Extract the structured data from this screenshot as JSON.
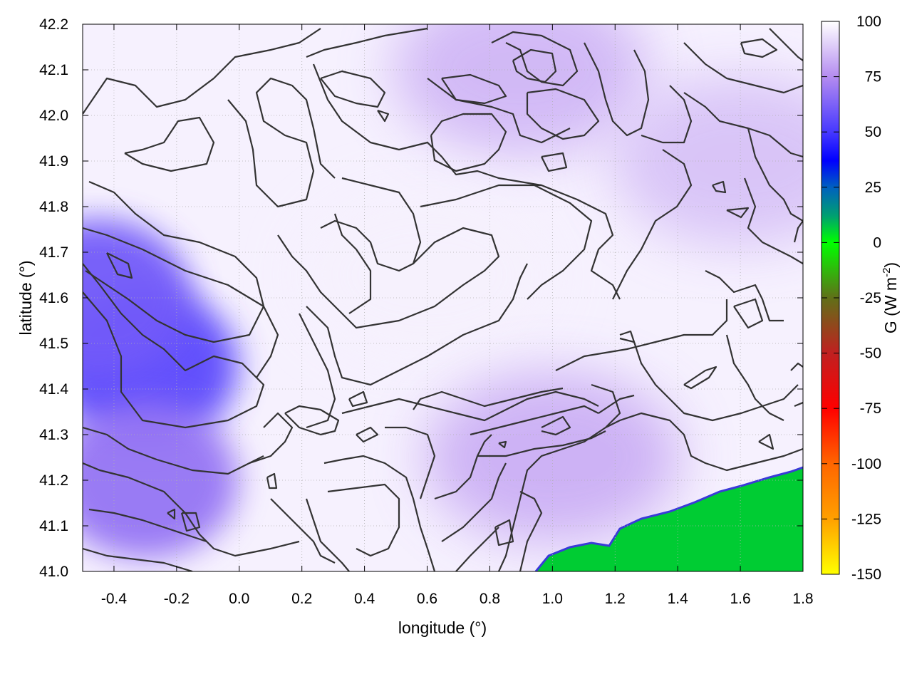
{
  "chart_data": {
    "type": "heatmap",
    "xlabel": "longitude (°)",
    "ylabel": "latitude (°)",
    "xlim": [
      -0.5,
      1.8
    ],
    "ylim": [
      41.0,
      42.2
    ],
    "x_ticks": [
      "-0.4",
      "-0.2",
      "0.0",
      "0.2",
      "0.4",
      "0.6",
      "0.8",
      "1.0",
      "1.2",
      "1.4",
      "1.6",
      "1.8"
    ],
    "y_ticks": [
      "41.0",
      "41.1",
      "41.2",
      "41.3",
      "41.4",
      "41.5",
      "41.6",
      "41.7",
      "41.8",
      "41.9",
      "42.0",
      "42.1",
      "42.2"
    ],
    "colorbar": {
      "label": "G (W m",
      "label_superscript": "-2",
      "label_close": ")",
      "range": [
        -150,
        100
      ],
      "ticks": [
        "100",
        "75",
        "50",
        "25",
        "0",
        "-25",
        "-50",
        "-75",
        "-100",
        "-125",
        "-150"
      ],
      "stops": [
        {
          "value": 100,
          "color": "#ffffff"
        },
        {
          "value": 75,
          "color": "#b48cf0"
        },
        {
          "value": 50,
          "color": "#4638ff"
        },
        {
          "value": 37,
          "color": "#0000ff"
        },
        {
          "value": 25,
          "color": "#0060c0"
        },
        {
          "value": 12,
          "color": "#00a070"
        },
        {
          "value": 0,
          "color": "#00ff00"
        },
        {
          "value": -25,
          "color": "#607018"
        },
        {
          "value": -50,
          "color": "#c02020"
        },
        {
          "value": -75,
          "color": "#ff0000"
        },
        {
          "value": -100,
          "color": "#ff6600"
        },
        {
          "value": -125,
          "color": "#ffa000"
        },
        {
          "value": -150,
          "color": "#ffff00"
        }
      ]
    },
    "field_regions": [
      {
        "name": "inland high-flux core",
        "lon": -0.3,
        "lat": 41.45,
        "G": 55
      },
      {
        "name": "southwest lobe",
        "lon": -0.3,
        "lat": 41.2,
        "G": 68
      },
      {
        "name": "western margin",
        "lon": -0.45,
        "lat": 41.6,
        "G": 60
      },
      {
        "name": "northern hills",
        "lon": 0.9,
        "lat": 42.1,
        "G": 82
      },
      {
        "name": "central plain",
        "lon": 0.6,
        "lat": 41.65,
        "G": 97
      },
      {
        "name": "eastern hills",
        "lon": 1.6,
        "lat": 41.9,
        "G": 85
      },
      {
        "name": "southern hills",
        "lon": 1.0,
        "lat": 41.25,
        "G": 80
      },
      {
        "name": "sea",
        "lon": 1.5,
        "lat": 41.08,
        "G": 1
      }
    ],
    "grid": true
  }
}
